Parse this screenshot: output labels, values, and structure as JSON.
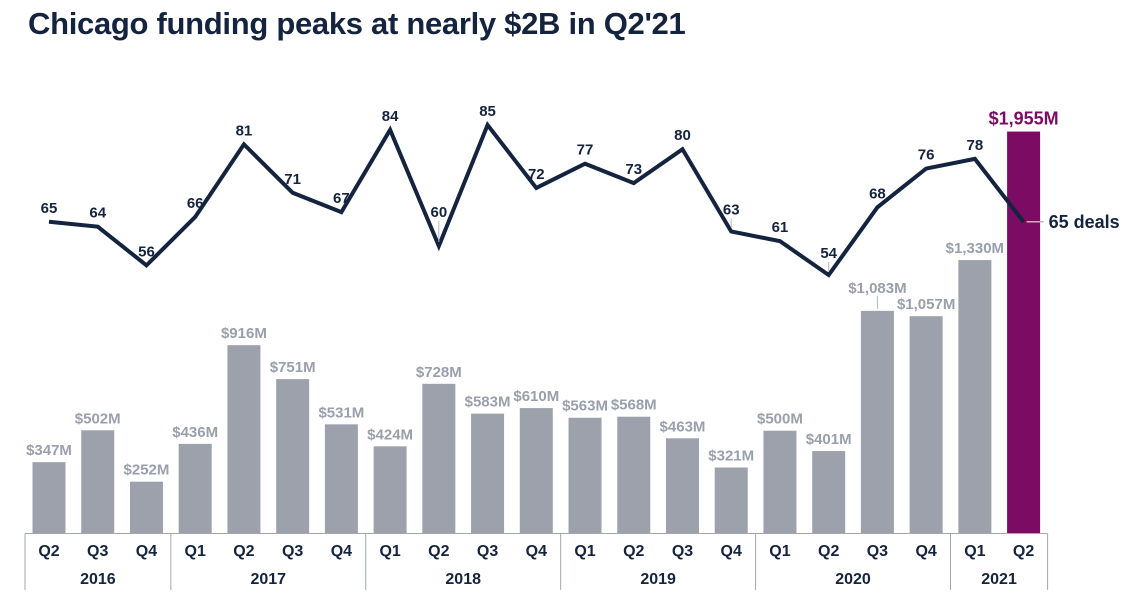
{
  "title": "Chicago funding peaks at nearly $2B in Q2'21",
  "colors": {
    "navy": "#14233e",
    "bar_gray": "#9da1ac",
    "label_gray": "#999fab",
    "highlight_purple": "#7c0b64",
    "leader_gray": "#b4b8c1",
    "axis_gray": "#a3a7b1"
  },
  "chart_data": {
    "type": "bar",
    "combo": "bar+line",
    "title": "Chicago funding peaks at nearly $2B in Q2'21",
    "grid": false,
    "legend": "none",
    "ylim_bar_musd": [
      0,
      1955
    ],
    "ylim_line_deals": [
      54,
      85
    ],
    "categories": [
      {
        "year": "2016",
        "quarters": [
          "Q2",
          "Q3",
          "Q4"
        ]
      },
      {
        "year": "2017",
        "quarters": [
          "Q1",
          "Q2",
          "Q3",
          "Q4"
        ]
      },
      {
        "year": "2018",
        "quarters": [
          "Q1",
          "Q2",
          "Q3",
          "Q4"
        ]
      },
      {
        "year": "2019",
        "quarters": [
          "Q1",
          "Q2",
          "Q3",
          "Q4"
        ]
      },
      {
        "year": "2020",
        "quarters": [
          "Q1",
          "Q2",
          "Q3",
          "Q4"
        ]
      },
      {
        "year": "2021",
        "quarters": [
          "Q1",
          "Q2"
        ]
      }
    ],
    "series": [
      {
        "name": "Funding ($M)",
        "type": "bar",
        "values": [
          347,
          502,
          252,
          436,
          916,
          751,
          531,
          424,
          728,
          583,
          610,
          563,
          568,
          463,
          321,
          500,
          401,
          1083,
          1057,
          1330,
          1955
        ],
        "labels": [
          "$347M",
          "$502M",
          "$252M",
          "$436M",
          "$916M",
          "$751M",
          "$531M",
          "$424M",
          "$728M",
          "$583M",
          "$610M",
          "$563M",
          "$568M",
          "$463M",
          "$321M",
          "$500M",
          "$401M",
          "$1,083M",
          "$1,057M",
          "$1,330M",
          "$1,955M"
        ]
      },
      {
        "name": "Deals",
        "type": "line",
        "values": [
          65,
          64,
          56,
          66,
          81,
          71,
          67,
          84,
          60,
          85,
          72,
          77,
          73,
          80,
          63,
          61,
          54,
          68,
          76,
          78,
          65
        ]
      }
    ],
    "highlight": {
      "index": 20,
      "bar_label": "$1,955M",
      "line_label": "65 deals"
    }
  }
}
